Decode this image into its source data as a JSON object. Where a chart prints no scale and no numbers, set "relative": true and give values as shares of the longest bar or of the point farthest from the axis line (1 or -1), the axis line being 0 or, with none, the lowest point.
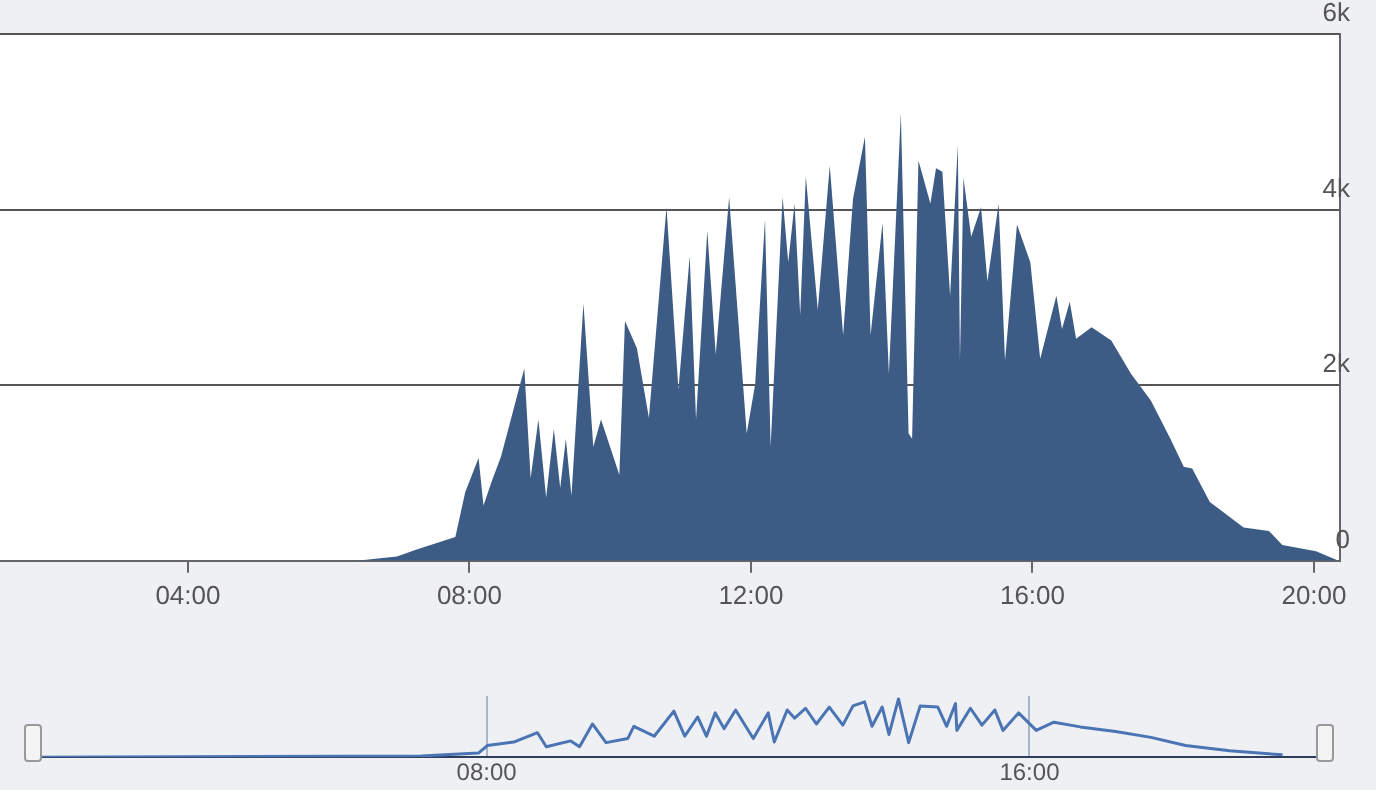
{
  "chart_data": [
    {
      "type": "area",
      "color": "#3d5c85",
      "marker": "none",
      "grid": "y",
      "xlim": [
        1.33,
        20.37
      ],
      "xticks": [
        {
          "value": 4,
          "label": "04:00"
        },
        {
          "value": 8,
          "label": "08:00"
        },
        {
          "value": 12,
          "label": "12:00"
        },
        {
          "value": 16,
          "label": "16:00"
        },
        {
          "value": 20,
          "label": "20:00"
        }
      ],
      "ylim": [
        0,
        6000
      ],
      "yticks": [
        {
          "value": 0,
          "label": "0"
        },
        {
          "value": 2000,
          "label": "2k"
        },
        {
          "value": 4000,
          "label": "4k"
        },
        {
          "value": 6000,
          "label": "6k"
        }
      ],
      "x": [
        1.33,
        6.4,
        6.97,
        7.25,
        7.8,
        7.94,
        8.13,
        8.2,
        8.31,
        8.45,
        8.78,
        8.87,
        8.98,
        9.09,
        9.2,
        9.29,
        9.37,
        9.45,
        9.62,
        9.76,
        9.87,
        10.13,
        10.21,
        10.38,
        10.55,
        10.8,
        10.97,
        11.13,
        11.22,
        11.38,
        11.5,
        11.69,
        11.94,
        12.06,
        12.2,
        12.28,
        12.45,
        12.53,
        12.62,
        12.7,
        12.78,
        12.95,
        13.12,
        13.31,
        13.45,
        13.62,
        13.7,
        13.87,
        13.96,
        14.13,
        14.24,
        14.29,
        14.38,
        14.55,
        14.63,
        14.72,
        14.83,
        14.94,
        14.97,
        15.02,
        15.13,
        15.27,
        15.36,
        15.52,
        15.61,
        15.78,
        15.97,
        16.11,
        16.34,
        16.42,
        16.53,
        16.62,
        16.84,
        17.12,
        17.4,
        17.68,
        17.96,
        18.15,
        18.27,
        18.52,
        19.0,
        19.36,
        19.55,
        20.03,
        20.35
      ],
      "values": [
        0,
        0,
        50,
        130,
        270,
        780,
        1170,
        630,
        890,
        1190,
        2190,
        940,
        1610,
        720,
        1500,
        830,
        1390,
        740,
        2930,
        1300,
        1610,
        980,
        2730,
        2420,
        1630,
        4030,
        1950,
        3470,
        1610,
        3760,
        2350,
        4140,
        1450,
        2010,
        3890,
        1300,
        4140,
        3400,
        4070,
        2800,
        4380,
        2860,
        4500,
        2570,
        4120,
        4830,
        2570,
        3850,
        2130,
        5100,
        1450,
        1390,
        4560,
        4070,
        4470,
        4430,
        3020,
        4740,
        2280,
        4360,
        3690,
        4030,
        3180,
        4070,
        2280,
        3830,
        3400,
        2300,
        3020,
        2640,
        2950,
        2530,
        2660,
        2510,
        2130,
        1830,
        1390,
        1070,
        1050,
        670,
        380,
        340,
        180,
        110,
        0
      ]
    },
    {
      "type": "line",
      "relative": true,
      "color": "#4a74b4",
      "marker": "none",
      "grid": "x",
      "tick_labels": "x",
      "xlim": [
        1.36,
        20.37
      ],
      "xticks": [
        {
          "value": 8,
          "label": "08:00"
        },
        {
          "value": 16,
          "label": "16:00"
        }
      ],
      "x": [
        1.36,
        7.04,
        7.88,
        8.01,
        8.4,
        8.75,
        8.88,
        9.24,
        9.37,
        9.56,
        9.76,
        10.08,
        10.17,
        10.47,
        10.76,
        10.92,
        11.11,
        11.24,
        11.37,
        11.5,
        11.67,
        11.93,
        12.15,
        12.24,
        12.43,
        12.54,
        12.7,
        12.86,
        13.05,
        13.25,
        13.4,
        13.57,
        13.68,
        13.83,
        13.93,
        14.07,
        14.22,
        14.39,
        14.65,
        14.78,
        14.91,
        14.93,
        15.13,
        15.3,
        15.49,
        15.61,
        15.84,
        16.1,
        16.36,
        16.75,
        17.27,
        17.79,
        18.3,
        18.95,
        19.73
      ],
      "values": [
        0,
        0.02,
        0.07,
        0.2,
        0.26,
        0.42,
        0.18,
        0.28,
        0.18,
        0.57,
        0.25,
        0.32,
        0.53,
        0.36,
        0.79,
        0.36,
        0.69,
        0.36,
        0.76,
        0.49,
        0.81,
        0.32,
        0.76,
        0.26,
        0.81,
        0.67,
        0.84,
        0.57,
        0.86,
        0.55,
        0.88,
        0.95,
        0.53,
        0.86,
        0.39,
        1,
        0.25,
        0.88,
        0.86,
        0.53,
        0.92,
        0.46,
        0.84,
        0.55,
        0.81,
        0.46,
        0.76,
        0.46,
        0.6,
        0.52,
        0.44,
        0.34,
        0.2,
        0.11,
        0.04
      ]
    }
  ]
}
